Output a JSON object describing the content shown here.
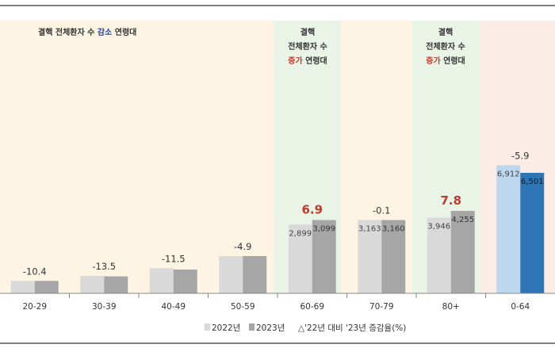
{
  "chart_data": {
    "type": "bar",
    "categories": [
      "20-29",
      "30-39",
      "40-49",
      "50-59",
      "60-69",
      "70-79",
      "80+",
      "0-64"
    ],
    "series": [
      {
        "name": "2022년",
        "values": [
          null,
          null,
          null,
          null,
          2899,
          3163,
          3946,
          6912
        ]
      },
      {
        "name": "2023년",
        "values": [
          null,
          null,
          null,
          null,
          3099,
          3160,
          4255,
          6501
        ]
      }
    ],
    "bar_labels_2022": [
      "",
      "",
      "",
      "",
      "2,899",
      "3,163",
      "3,946",
      "6,912"
    ],
    "bar_labels_2023": [
      "",
      "",
      "",
      "",
      "3,099",
      "3,160",
      "4,255",
      "6,501"
    ],
    "change_labels": [
      "-10.4",
      "-13.5",
      "-11.5",
      "-4.9",
      "6.9",
      "-0.1",
      "7.8",
      "-5.9"
    ],
    "change_values": [
      -10.4,
      -13.5,
      -11.5,
      -4.9,
      6.9,
      -0.1,
      7.8,
      -5.9
    ],
    "bar_heights_relative": [
      [
        0.049,
        0.049
      ],
      [
        0.069,
        0.067
      ],
      [
        0.099,
        0.094
      ],
      [
        0.147,
        0.147
      ],
      [
        0.271,
        0.289
      ],
      [
        0.289,
        0.289
      ],
      [
        0.298,
        0.325
      ],
      [
        0.505,
        0.475
      ]
    ],
    "highlight_groups": [
      4,
      6
    ],
    "region_notes": {
      "decrease": [
        "결핵 전체환자 수 ",
        "감소",
        " 연령대"
      ],
      "increase_60": [
        "결핵",
        "전체환자 수",
        "증가",
        " 연령대"
      ],
      "increase_80": [
        "결핵",
        "전체환자 수",
        "증가",
        " 연령대"
      ]
    },
    "legend": {
      "s2022": "2022년",
      "s2023": "2023년",
      "change": "△'22년 대비 '23년 증감율(%)"
    },
    "colors": {
      "bg_decrease": "#fdf4e3",
      "bg_increase": "#e9f4e6",
      "bg_total": "#fbece6",
      "bar_2022": "#d9d9d9",
      "bar_2023": "#a6a6a6",
      "bar_2022_total": "#bdd7ee",
      "bar_2023_total": "#2e75b6",
      "highlight_text": "#c0392b",
      "decrease_word": "#1f3fa8",
      "text": "#333333",
      "frame": "#555555"
    }
  }
}
